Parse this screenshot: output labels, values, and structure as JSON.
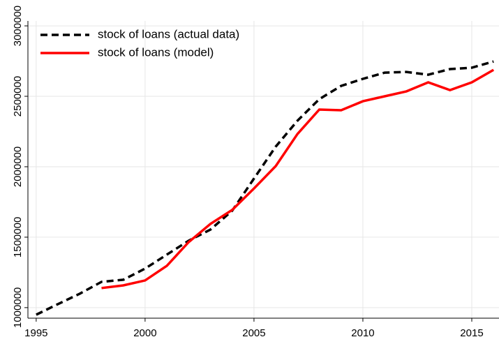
{
  "chart_data": {
    "type": "line",
    "x": [
      1995,
      1996,
      1997,
      1998,
      1999,
      2000,
      2001,
      2002,
      2003,
      2004,
      2005,
      2006,
      2007,
      2008,
      2009,
      2010,
      2011,
      2012,
      2013,
      2014,
      2015,
      2016
    ],
    "series": [
      {
        "name": "stock of loans (actual data)",
        "color": "#000000",
        "dash": "dashed",
        "values": [
          950000,
          1025000,
          1099000,
          1183000,
          1198000,
          1277000,
          1376000,
          1475000,
          1554000,
          1688000,
          1916000,
          2143000,
          2327000,
          2480000,
          2574000,
          2624000,
          2668000,
          2673000,
          2653000,
          2693000,
          2703000,
          2747000
        ]
      },
      {
        "name": "stock of loans (model)",
        "color": "#ff0000",
        "dash": "solid",
        "values": [
          null,
          null,
          null,
          1139000,
          1158000,
          1193000,
          1297000,
          1465000,
          1594000,
          1693000,
          1846000,
          2005000,
          2233000,
          2406000,
          2401000,
          2465000,
          2500000,
          2535000,
          2599000,
          2544000,
          2599000,
          2688000
        ]
      }
    ],
    "xlim": [
      1994.62,
      2016.25
    ],
    "xticks": [
      1995,
      2000,
      2005,
      2010,
      2015
    ],
    "ylim": [
      925000,
      3035000
    ],
    "yticks": [
      1000000,
      1500000,
      2000000,
      2500000,
      3000000
    ],
    "grid": true,
    "legend": "upper left"
  }
}
